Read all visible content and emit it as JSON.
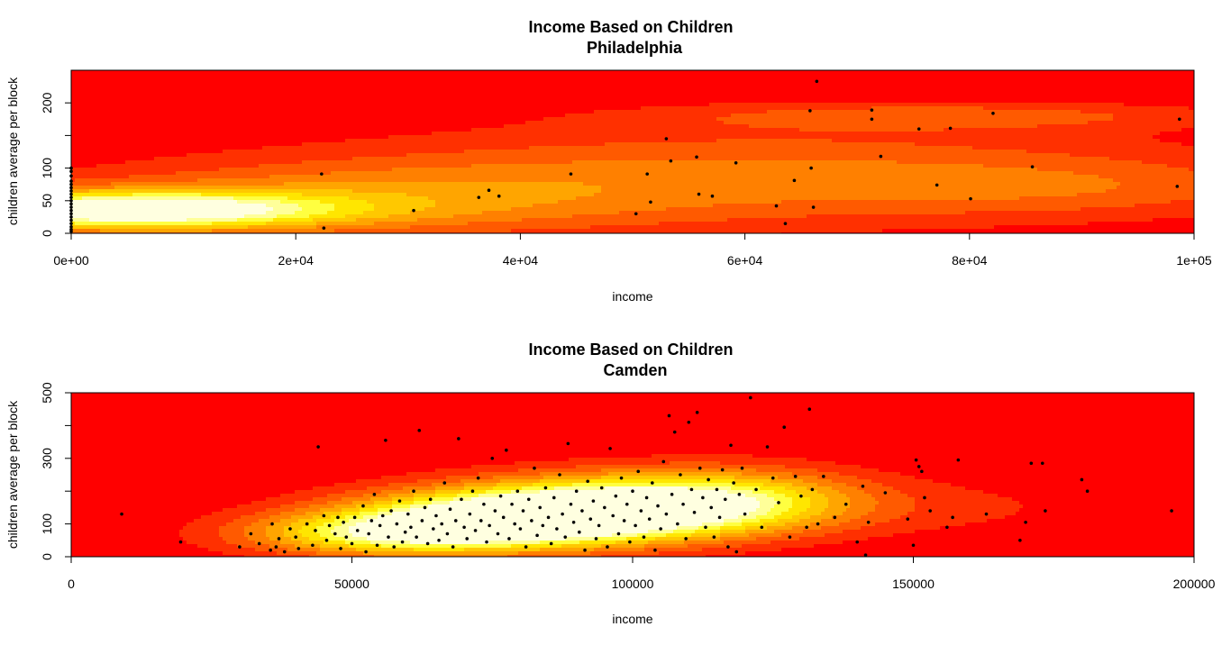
{
  "chart_data": [
    {
      "type": "heatmap",
      "title": "Income Based on Children",
      "subtitle": "Philadelphia",
      "xlabel": "income",
      "ylabel": "children average per block",
      "xlim": [
        0,
        100000
      ],
      "ylim": [
        0,
        250
      ],
      "x_ticks": [
        {
          "value": 0,
          "label": "0e+00"
        },
        {
          "value": 20000,
          "label": "2e+04"
        },
        {
          "value": 40000,
          "label": "4e+04"
        },
        {
          "value": 60000,
          "label": "6e+04"
        },
        {
          "value": 80000,
          "label": "8e+04"
        },
        {
          "value": 100000,
          "label": "1e+05"
        }
      ],
      "y_ticks": [
        {
          "value": 0,
          "label": "0"
        },
        {
          "value": 50,
          "label": "50"
        },
        {
          "value": 100,
          "label": "100"
        },
        {
          "value": 150,
          "label": ""
        },
        {
          "value": 200,
          "label": "200"
        }
      ],
      "palette": [
        "#ff0000",
        "#ff3000",
        "#ff5a00",
        "#ff8000",
        "#ffa500",
        "#ffc800",
        "#ffe600",
        "#ffff40",
        "#ffff99",
        "#ffffe0"
      ],
      "density_components": [
        {
          "x": 4000,
          "y": 35,
          "sx": 13000,
          "sy": 20,
          "w": 1.0
        },
        {
          "x": 25000,
          "y": 50,
          "sx": 20000,
          "sy": 40,
          "w": 0.32
        },
        {
          "x": 62000,
          "y": 90,
          "sx": 28000,
          "sy": 55,
          "w": 0.3
        },
        {
          "x": 78000,
          "y": 180,
          "sx": 18000,
          "sy": 15,
          "w": 0.22
        },
        {
          "x": 90000,
          "y": 70,
          "sx": 15000,
          "sy": 30,
          "w": 0.15
        }
      ],
      "points": [
        [
          0,
          100
        ],
        [
          0,
          95
        ],
        [
          0,
          88
        ],
        [
          0,
          80
        ],
        [
          0,
          75
        ],
        [
          0,
          70
        ],
        [
          0,
          65
        ],
        [
          0,
          60
        ],
        [
          0,
          55
        ],
        [
          0,
          50
        ],
        [
          0,
          45
        ],
        [
          0,
          40
        ],
        [
          0,
          35
        ],
        [
          0,
          30
        ],
        [
          0,
          25
        ],
        [
          0,
          20
        ],
        [
          0,
          15
        ],
        [
          0,
          10
        ],
        [
          0,
          6
        ],
        [
          0,
          3
        ],
        [
          22300,
          91
        ],
        [
          22500,
          8
        ],
        [
          30500,
          35
        ],
        [
          36300,
          55
        ],
        [
          37200,
          66
        ],
        [
          38100,
          57
        ],
        [
          44500,
          91
        ],
        [
          50300,
          30
        ],
        [
          51300,
          91
        ],
        [
          51600,
          48
        ],
        [
          53000,
          145
        ],
        [
          53400,
          111
        ],
        [
          55700,
          117
        ],
        [
          55900,
          60
        ],
        [
          57100,
          57
        ],
        [
          59200,
          108
        ],
        [
          62800,
          42
        ],
        [
          63600,
          15
        ],
        [
          64400,
          81
        ],
        [
          65800,
          188
        ],
        [
          65900,
          100
        ],
        [
          66100,
          40
        ],
        [
          66400,
          233
        ],
        [
          71300,
          189
        ],
        [
          71300,
          175
        ],
        [
          72100,
          118
        ],
        [
          75500,
          160
        ],
        [
          77100,
          74
        ],
        [
          78300,
          161
        ],
        [
          80100,
          53
        ],
        [
          82100,
          184
        ],
        [
          85600,
          102
        ],
        [
          98500,
          72
        ],
        [
          98700,
          175
        ]
      ]
    },
    {
      "type": "heatmap",
      "title": "Income Based on Children",
      "subtitle": "Camden",
      "xlabel": "income",
      "ylabel": "children average per block",
      "xlim": [
        0,
        200000
      ],
      "ylim": [
        0,
        500
      ],
      "x_ticks": [
        {
          "value": 0,
          "label": "0"
        },
        {
          "value": 50000,
          "label": "50000"
        },
        {
          "value": 100000,
          "label": "100000"
        },
        {
          "value": 150000,
          "label": "150000"
        },
        {
          "value": 200000,
          "label": "200000"
        }
      ],
      "y_ticks": [
        {
          "value": 0,
          "label": "0"
        },
        {
          "value": 100,
          "label": "100"
        },
        {
          "value": 200,
          "label": ""
        },
        {
          "value": 300,
          "label": "300"
        },
        {
          "value": 400,
          "label": ""
        },
        {
          "value": 500,
          "label": "500"
        }
      ],
      "palette": [
        "#ff0000",
        "#ff3000",
        "#ff5a00",
        "#ff8000",
        "#ffa500",
        "#ffc800",
        "#ffe600",
        "#ffff40",
        "#ffff99",
        "#ffffe0"
      ],
      "density_components": [
        {
          "x": 78000,
          "y": 110,
          "sx": 22000,
          "sy": 60,
          "w": 1.0
        },
        {
          "x": 100000,
          "y": 160,
          "sx": 22000,
          "sy": 65,
          "w": 0.85
        },
        {
          "x": 55000,
          "y": 65,
          "sx": 18000,
          "sy": 45,
          "w": 0.55
        },
        {
          "x": 120000,
          "y": 180,
          "sx": 16000,
          "sy": 70,
          "w": 0.3
        },
        {
          "x": 160000,
          "y": 150,
          "sx": 22000,
          "sy": 70,
          "w": 0.1
        },
        {
          "x": 110000,
          "y": 420,
          "sx": 12000,
          "sy": 40,
          "w": 0.06
        }
      ],
      "points": [
        [
          9000,
          130
        ],
        [
          19500,
          45
        ],
        [
          30000,
          30
        ],
        [
          32000,
          70
        ],
        [
          33500,
          40
        ],
        [
          35500,
          20
        ],
        [
          35800,
          100
        ],
        [
          36500,
          30
        ],
        [
          37000,
          55
        ],
        [
          38000,
          15
        ],
        [
          39000,
          85
        ],
        [
          40000,
          60
        ],
        [
          40500,
          25
        ],
        [
          42000,
          100
        ],
        [
          43000,
          35
        ],
        [
          43500,
          80
        ],
        [
          44000,
          335
        ],
        [
          45000,
          125
        ],
        [
          45500,
          50
        ],
        [
          46000,
          95
        ],
        [
          47000,
          70
        ],
        [
          47500,
          120
        ],
        [
          48000,
          25
        ],
        [
          48500,
          105
        ],
        [
          49000,
          60
        ],
        [
          50000,
          40
        ],
        [
          50500,
          120
        ],
        [
          51000,
          80
        ],
        [
          52000,
          155
        ],
        [
          52500,
          15
        ],
        [
          53000,
          70
        ],
        [
          53500,
          110
        ],
        [
          54000,
          190
        ],
        [
          54500,
          35
        ],
        [
          55000,
          95
        ],
        [
          55500,
          125
        ],
        [
          56000,
          355
        ],
        [
          56500,
          60
        ],
        [
          57000,
          140
        ],
        [
          57500,
          30
        ],
        [
          58000,
          100
        ],
        [
          58500,
          170
        ],
        [
          59000,
          45
        ],
        [
          59500,
          75
        ],
        [
          60000,
          130
        ],
        [
          60500,
          90
        ],
        [
          61000,
          200
        ],
        [
          61500,
          60
        ],
        [
          62000,
          385
        ],
        [
          62500,
          110
        ],
        [
          63000,
          150
        ],
        [
          63500,
          40
        ],
        [
          64000,
          175
        ],
        [
          64500,
          85
        ],
        [
          65000,
          125
        ],
        [
          65500,
          50
        ],
        [
          66000,
          100
        ],
        [
          66500,
          225
        ],
        [
          67000,
          70
        ],
        [
          67500,
          145
        ],
        [
          68000,
          30
        ],
        [
          68500,
          110
        ],
        [
          69000,
          360
        ],
        [
          69500,
          175
        ],
        [
          70000,
          90
        ],
        [
          70500,
          55
        ],
        [
          71000,
          130
        ],
        [
          71500,
          200
        ],
        [
          72000,
          80
        ],
        [
          72500,
          240
        ],
        [
          73000,
          110
        ],
        [
          73500,
          160
        ],
        [
          74000,
          45
        ],
        [
          74500,
          95
        ],
        [
          75000,
          300
        ],
        [
          75500,
          140
        ],
        [
          76000,
          70
        ],
        [
          76500,
          185
        ],
        [
          77000,
          120
        ],
        [
          77500,
          325
        ],
        [
          78000,
          55
        ],
        [
          78500,
          160
        ],
        [
          79000,
          100
        ],
        [
          79500,
          200
        ],
        [
          80000,
          85
        ],
        [
          80500,
          140
        ],
        [
          81000,
          30
        ],
        [
          81500,
          175
        ],
        [
          82000,
          110
        ],
        [
          82500,
          270
        ],
        [
          83000,
          65
        ],
        [
          83500,
          150
        ],
        [
          84000,
          95
        ],
        [
          84500,
          210
        ],
        [
          85000,
          120
        ],
        [
          85500,
          40
        ],
        [
          86000,
          180
        ],
        [
          86500,
          85
        ],
        [
          87000,
          250
        ],
        [
          87500,
          130
        ],
        [
          88000,
          60
        ],
        [
          88500,
          345
        ],
        [
          89000,
          160
        ],
        [
          89500,
          105
        ],
        [
          90000,
          200
        ],
        [
          90500,
          75
        ],
        [
          91000,
          140
        ],
        [
          91500,
          20
        ],
        [
          92000,
          230
        ],
        [
          92500,
          115
        ],
        [
          93000,
          170
        ],
        [
          93500,
          55
        ],
        [
          94000,
          95
        ],
        [
          94500,
          210
        ],
        [
          95000,
          150
        ],
        [
          95500,
          30
        ],
        [
          96000,
          330
        ],
        [
          96500,
          125
        ],
        [
          97000,
          185
        ],
        [
          97500,
          70
        ],
        [
          98000,
          240
        ],
        [
          98500,
          110
        ],
        [
          99000,
          160
        ],
        [
          99500,
          45
        ],
        [
          100000,
          200
        ],
        [
          100500,
          95
        ],
        [
          101000,
          260
        ],
        [
          101500,
          140
        ],
        [
          102000,
          60
        ],
        [
          102500,
          180
        ],
        [
          103000,
          115
        ],
        [
          103500,
          225
        ],
        [
          104000,
          20
        ],
        [
          104500,
          155
        ],
        [
          105000,
          85
        ],
        [
          105500,
          290
        ],
        [
          106000,
          130
        ],
        [
          106500,
          430
        ],
        [
          107000,
          190
        ],
        [
          107500,
          380
        ],
        [
          108000,
          100
        ],
        [
          108500,
          250
        ],
        [
          109000,
          160
        ],
        [
          109500,
          55
        ],
        [
          110000,
          410
        ],
        [
          110500,
          205
        ],
        [
          111000,
          135
        ],
        [
          111500,
          440
        ],
        [
          112000,
          270
        ],
        [
          112500,
          180
        ],
        [
          113000,
          90
        ],
        [
          113500,
          235
        ],
        [
          114000,
          150
        ],
        [
          114500,
          60
        ],
        [
          115000,
          205
        ],
        [
          115500,
          120
        ],
        [
          116000,
          265
        ],
        [
          116500,
          175
        ],
        [
          117000,
          30
        ],
        [
          117500,
          340
        ],
        [
          118000,
          225
        ],
        [
          118500,
          15
        ],
        [
          119000,
          190
        ],
        [
          119500,
          270
        ],
        [
          120000,
          130
        ],
        [
          121000,
          485
        ],
        [
          122000,
          205
        ],
        [
          123000,
          90
        ],
        [
          124000,
          335
        ],
        [
          125000,
          240
        ],
        [
          126000,
          165
        ],
        [
          127000,
          395
        ],
        [
          128000,
          60
        ],
        [
          129000,
          245
        ],
        [
          130000,
          185
        ],
        [
          131000,
          90
        ],
        [
          131500,
          450
        ],
        [
          132000,
          205
        ],
        [
          133000,
          100
        ],
        [
          134000,
          245
        ],
        [
          136000,
          120
        ],
        [
          138000,
          160
        ],
        [
          140000,
          45
        ],
        [
          141000,
          215
        ],
        [
          141500,
          5
        ],
        [
          142000,
          105
        ],
        [
          145000,
          195
        ],
        [
          149000,
          115
        ],
        [
          150000,
          35
        ],
        [
          150500,
          295
        ],
        [
          151000,
          275
        ],
        [
          151500,
          260
        ],
        [
          152000,
          180
        ],
        [
          153000,
          140
        ],
        [
          156000,
          90
        ],
        [
          157000,
          120
        ],
        [
          158000,
          295
        ],
        [
          163000,
          130
        ],
        [
          169000,
          50
        ],
        [
          170000,
          105
        ],
        [
          171000,
          285
        ],
        [
          173000,
          285
        ],
        [
          173500,
          140
        ],
        [
          180000,
          235
        ],
        [
          181000,
          200
        ],
        [
          196000,
          140
        ]
      ]
    }
  ]
}
